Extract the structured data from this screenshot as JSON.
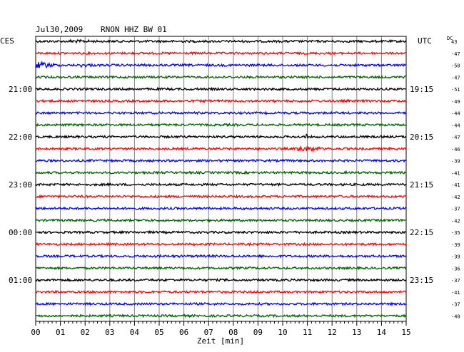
{
  "header": {
    "date": "Jul30,2009",
    "station": "RNON HHZ BW 01",
    "left_zone": "CES",
    "right_zone": "UTC",
    "dc_label": "DC"
  },
  "colors": {
    "trace_cycle": [
      "#000000",
      "#ff0000",
      "#0000ff",
      "#006400"
    ],
    "grid": "#808080",
    "frame": "#000000",
    "background": "#ffffff"
  },
  "chart_data": {
    "type": "line",
    "title": "Jul30,2009   RNON HHZ BW 01",
    "xlabel": "Zeit [min]",
    "ylabel": "",
    "x_range": [
      0,
      15
    ],
    "x_ticks": [
      "00",
      "01",
      "02",
      "03",
      "04",
      "05",
      "06",
      "07",
      "08",
      "09",
      "10",
      "11",
      "12",
      "13",
      "14",
      "15"
    ],
    "grid": true,
    "trace_count": 24,
    "left_time_labels": [
      {
        "trace": 4,
        "label": "21:00"
      },
      {
        "trace": 8,
        "label": "22:00"
      },
      {
        "trace": 12,
        "label": "23:00"
      },
      {
        "trace": 16,
        "label": "00:00"
      },
      {
        "trace": 20,
        "label": "01:00"
      }
    ],
    "right_time_labels": [
      {
        "trace": 4,
        "label": "19:15"
      },
      {
        "trace": 8,
        "label": "20:15"
      },
      {
        "trace": 12,
        "label": "21:15"
      },
      {
        "trace": 16,
        "label": "22:15"
      },
      {
        "trace": 20,
        "label": "23:15"
      }
    ],
    "dc_offsets": [
      "43",
      "-47",
      "-50",
      "-47",
      "-51",
      "-49",
      "-44",
      "-44",
      "-47",
      "-46",
      "-39",
      "-41",
      "-41",
      "-42",
      "-37",
      "-42",
      "-35",
      "-39",
      "-39",
      "-36",
      "-37",
      "-41",
      "-37",
      "-40"
    ],
    "noise_amplitude": 1.5,
    "events": [
      {
        "trace": 0,
        "start_min": 1.4,
        "end_min": 3.1,
        "amplitude": 2.5
      },
      {
        "trace": 2,
        "start_min": 0.0,
        "end_min": 0.9,
        "amplitude": 5
      },
      {
        "trace": 2,
        "start_min": 1.8,
        "end_min": 2.6,
        "amplitude": 3
      },
      {
        "trace": 8,
        "start_min": 10.9,
        "end_min": 11.0,
        "amplitude": 7
      },
      {
        "trace": 9,
        "start_min": 10.6,
        "end_min": 11.6,
        "amplitude": 5
      }
    ]
  }
}
